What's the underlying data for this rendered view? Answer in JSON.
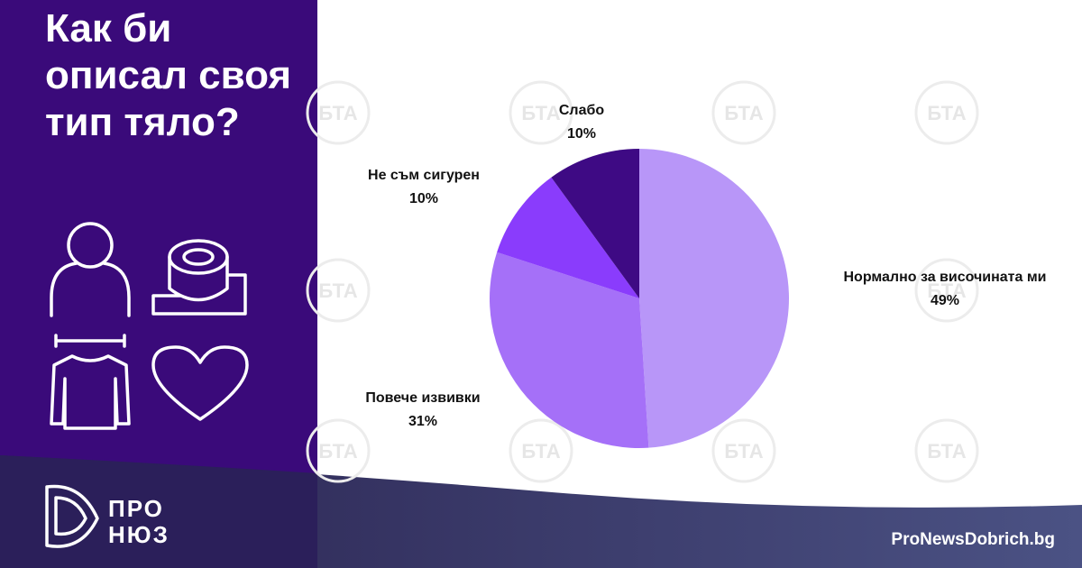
{
  "chart_data": {
    "type": "pie",
    "title": "Как би описал своя тип тяло?",
    "categories": [
      "Нормално за височината ми",
      "Повече извивки",
      "Не съм сигурен",
      "Слабо"
    ],
    "values": [
      49,
      31,
      10,
      10
    ],
    "value_labels": [
      "49%",
      "31%",
      "10%",
      "10%"
    ],
    "colors": [
      "#b896f8",
      "#a570f8",
      "#8a3cfc",
      "#3e0a84"
    ]
  },
  "brand": {
    "logo_top": "ПРО",
    "logo_bottom": "НЮЗ",
    "site": "ProNewsDobrich.bg",
    "watermark": "БТА"
  }
}
